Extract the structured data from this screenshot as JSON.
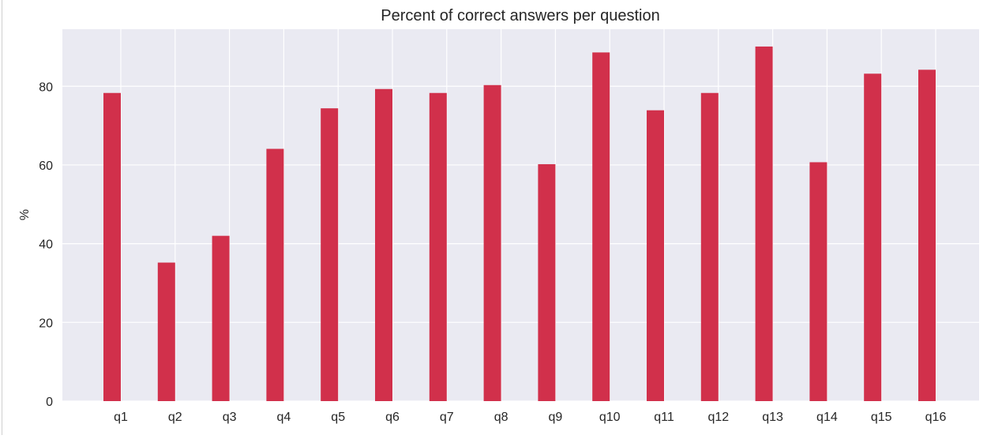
{
  "chart_data": {
    "type": "bar",
    "title": "Percent of correct answers per question",
    "xlabel": "",
    "ylabel": "%",
    "categories": [
      "q1",
      "q2",
      "q3",
      "q4",
      "q5",
      "q6",
      "q7",
      "q8",
      "q9",
      "q10",
      "q11",
      "q12",
      "q13",
      "q14",
      "q15",
      "q16"
    ],
    "values": [
      78.3,
      35.2,
      42.0,
      64.1,
      74.4,
      79.3,
      78.3,
      80.3,
      60.2,
      88.6,
      73.9,
      78.3,
      90.1,
      60.7,
      83.2,
      84.2
    ],
    "ylim": [
      0,
      94.5
    ],
    "yticks": [
      "0",
      "20",
      "40",
      "60",
      "80"
    ],
    "grid": true,
    "legend": "none",
    "colors": {
      "bar": "#d1304b",
      "plot_background": "#eaeaf2",
      "grid": "#ffffff",
      "text": "#262626"
    }
  }
}
